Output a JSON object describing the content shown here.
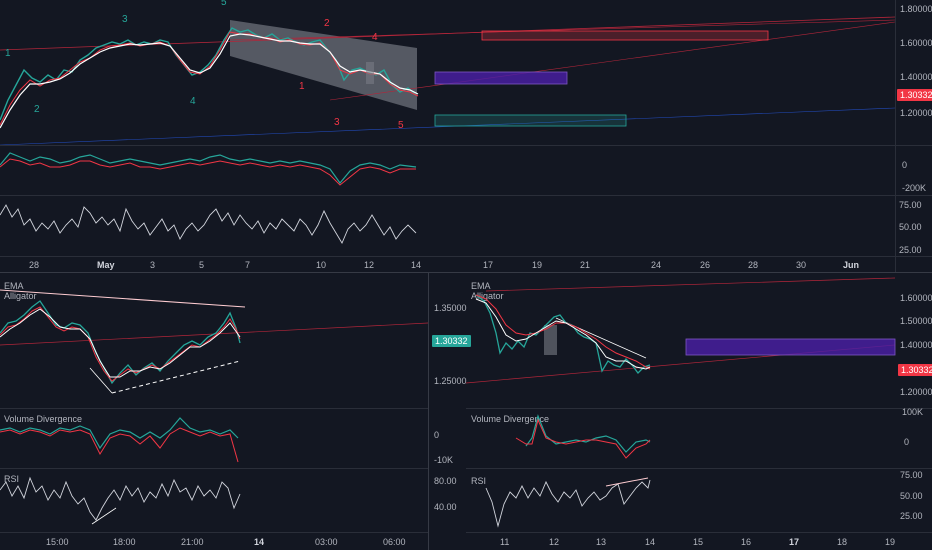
{
  "top": {
    "price_axis": [
      "1.80000",
      "1.60000",
      "1.40000",
      "1.20000"
    ],
    "last_price": "1.30332",
    "vd_axis": [
      "0",
      "-200K"
    ],
    "rsi_axis": [
      "75.00",
      "50.00",
      "25.00"
    ],
    "time_axis": [
      "28",
      "May",
      "3",
      "5",
      "7",
      "10",
      "12",
      "14",
      "17",
      "19",
      "21",
      "24",
      "26",
      "28",
      "30",
      "Jun"
    ],
    "waves_green": [
      "1",
      "2",
      "3",
      "4",
      "5"
    ],
    "waves_red": [
      "1",
      "2",
      "3",
      "4",
      "5"
    ]
  },
  "bottom_left": {
    "legend_ema": "EMA",
    "legend_alligator": "Alligator",
    "price_axis": [
      "1.35000",
      "1.25000"
    ],
    "last_price": "1.30332",
    "vd_label": "Volume Divergence",
    "vd_axis": [
      "0",
      "-10K"
    ],
    "rsi_label": "RSI",
    "rsi_axis": [
      "80.00",
      "40.00"
    ],
    "time_axis": [
      "15:00",
      "18:00",
      "21:00",
      "14",
      "03:00",
      "06:00"
    ]
  },
  "bottom_right": {
    "legend_ema": "EMA",
    "legend_alligator": "Alligator",
    "price_axis": [
      "1.60000",
      "1.50000",
      "1.40000",
      "1.20000"
    ],
    "last_price": "1.30332",
    "vd_label": "Volume Divergence",
    "vd_axis": [
      "100K",
      "0"
    ],
    "rsi_label": "RSI",
    "rsi_axis": [
      "75.00",
      "50.00",
      "25.00"
    ],
    "time_axis": [
      "11",
      "12",
      "13",
      "14",
      "15",
      "16",
      "17",
      "18",
      "19"
    ]
  },
  "colors": {
    "up": "#26a69a",
    "down": "#f23645",
    "purple": "#4b1fa8",
    "wave_green": "#26a69a",
    "wave_red": "#f23645"
  }
}
